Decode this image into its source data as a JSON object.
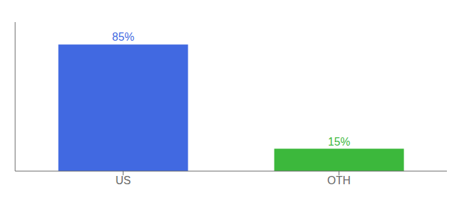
{
  "chart_data": {
    "type": "bar",
    "categories": [
      "US",
      "OTH"
    ],
    "values": [
      85,
      15
    ],
    "value_labels": [
      "85%",
      "15%"
    ],
    "colors": [
      "#4169e1",
      "#3cb83c"
    ],
    "ylim": [
      0,
      100
    ],
    "data_labels": true,
    "tick_labels": "x"
  }
}
